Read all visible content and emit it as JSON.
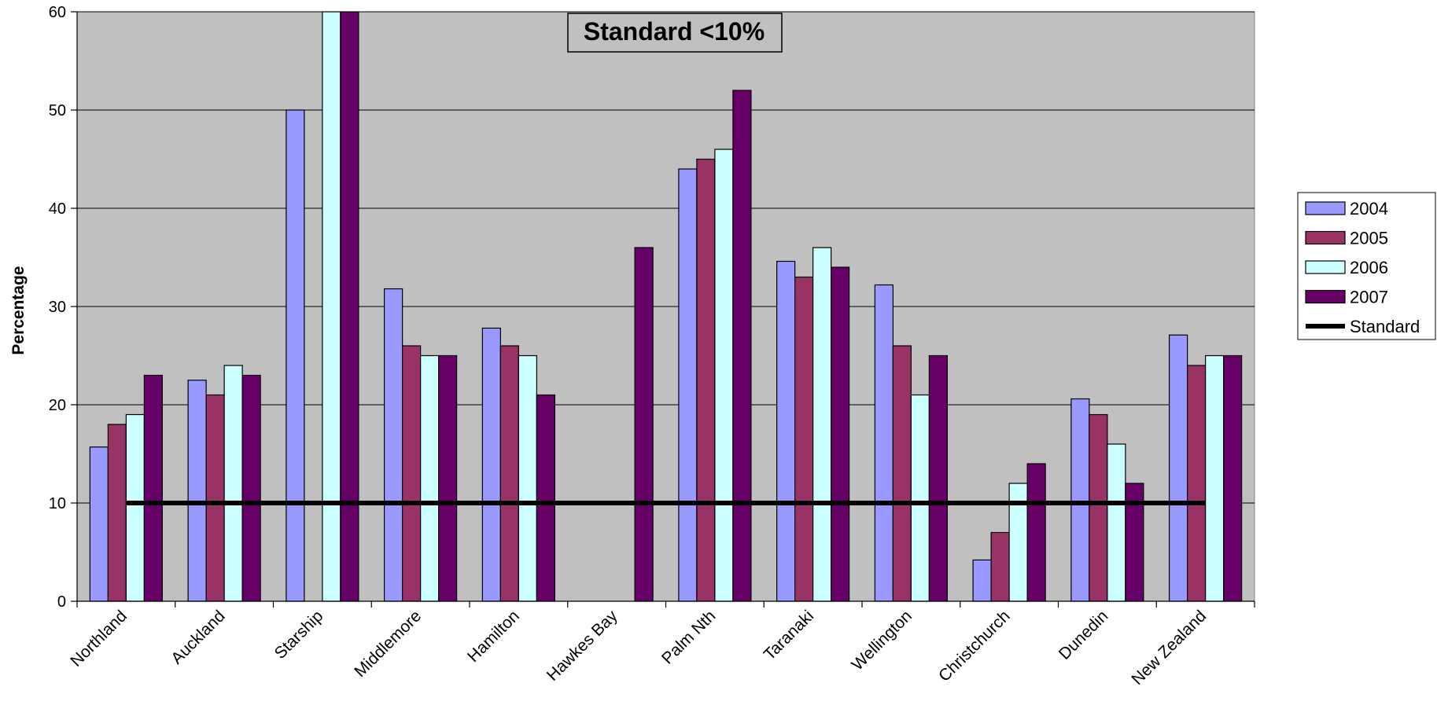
{
  "chart_data": {
    "type": "bar",
    "title": "Standard <10%",
    "xlabel": "",
    "ylabel": "Percentage",
    "ylim": [
      0,
      60
    ],
    "yticks": [
      0,
      10,
      20,
      30,
      40,
      50,
      60
    ],
    "grid": true,
    "legend_position": "right",
    "categories": [
      "Northland",
      "Auckland",
      "Starship",
      "Middlemore",
      "Hamilton",
      "Hawkes Bay",
      "Palm Nth",
      "Taranaki",
      "Wellington",
      "Christchurch",
      "Dunedin",
      "New Zealand"
    ],
    "series": [
      {
        "name": "2004",
        "color": "#9999ff",
        "values": [
          15.7,
          22.5,
          50,
          31.8,
          27.8,
          null,
          44,
          34.6,
          32.2,
          4.2,
          20.6,
          27.1
        ]
      },
      {
        "name": "2005",
        "color": "#993366",
        "values": [
          18,
          21,
          null,
          26,
          26,
          null,
          45,
          33,
          26,
          7,
          19,
          24
        ]
      },
      {
        "name": "2006",
        "color": "#ccffff",
        "values": [
          19,
          24,
          64,
          25,
          25,
          null,
          46,
          36,
          21,
          12,
          16,
          25
        ]
      },
      {
        "name": "2007",
        "color": "#660066",
        "values": [
          23,
          23,
          64,
          25,
          21,
          36,
          52,
          34,
          25,
          14,
          12,
          25
        ]
      }
    ],
    "standard_line": {
      "name": "Standard",
      "value": 10,
      "color": "#000000"
    }
  }
}
